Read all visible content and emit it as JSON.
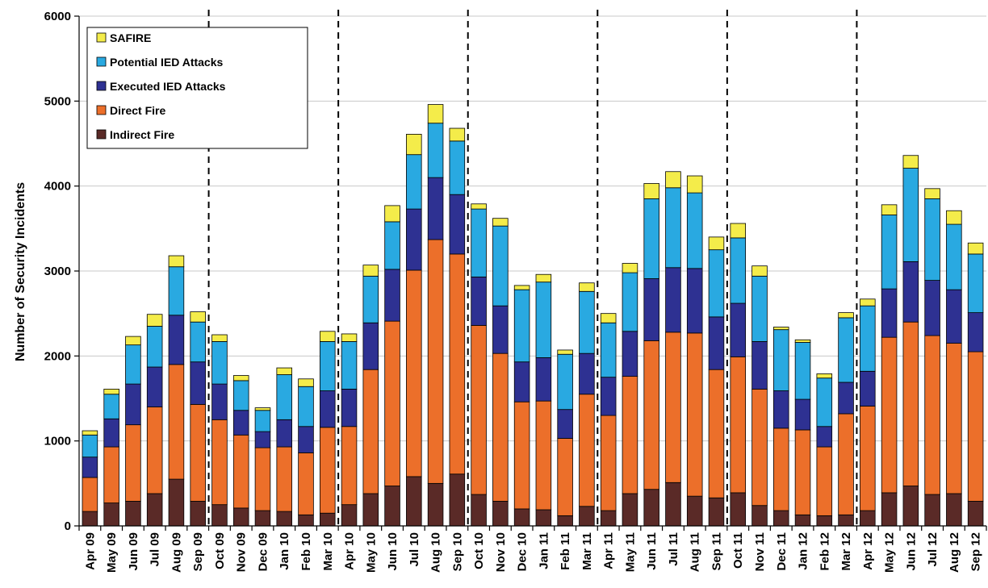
{
  "chart_data": {
    "type": "bar",
    "stacked": true,
    "title": "",
    "xlabel": "",
    "ylabel": "Number of Security Incidents",
    "ylim": [
      0,
      6000
    ],
    "yticks": [
      0,
      1000,
      2000,
      3000,
      4000,
      5000,
      6000
    ],
    "grid": true,
    "legend_position": "top-left",
    "categories": [
      "Apr 09",
      "May 09",
      "Jun 09",
      "Jul 09",
      "Aug 09",
      "Sep 09",
      "Oct 09",
      "Nov 09",
      "Dec 09",
      "Jan 10",
      "Feb 10",
      "Mar 10",
      "Apr 10",
      "May 10",
      "Jun 10",
      "Jul 10",
      "Aug 10",
      "Sep 10",
      "Oct 10",
      "Nov 10",
      "Dec 10",
      "Jan 11",
      "Feb 11",
      "Mar 11",
      "Apr 11",
      "May 11",
      "Jun 11",
      "Jul 11",
      "Aug 11",
      "Sep 11",
      "Oct 11",
      "Nov 11",
      "Dec 11",
      "Jan 12",
      "Feb 12",
      "Mar 12",
      "Apr 12",
      "May 12",
      "Jun 12",
      "Jul 12",
      "Aug 12",
      "Sep 12"
    ],
    "series": [
      {
        "name": "Indirect Fire",
        "color": "#5a2a27",
        "values": [
          170,
          270,
          290,
          380,
          550,
          290,
          250,
          210,
          180,
          170,
          130,
          150,
          250,
          380,
          470,
          580,
          500,
          610,
          370,
          290,
          200,
          190,
          120,
          230,
          180,
          380,
          430,
          510,
          350,
          330,
          390,
          240,
          180,
          130,
          120,
          130,
          180,
          390,
          470,
          370,
          380,
          290
        ]
      },
      {
        "name": "Direct Fire",
        "color": "#ec6f2a",
        "values": [
          400,
          660,
          900,
          1020,
          1350,
          1140,
          1000,
          860,
          740,
          760,
          730,
          1010,
          920,
          1460,
          1940,
          2430,
          2870,
          2590,
          1990,
          1740,
          1260,
          1280,
          910,
          1320,
          1120,
          1380,
          1750,
          1770,
          1920,
          1510,
          1600,
          1370,
          970,
          1000,
          810,
          1190,
          1230,
          1830,
          1930,
          1870,
          1770,
          1760
        ]
      },
      {
        "name": "Executed IED Attacks",
        "color": "#2e3192",
        "values": [
          240,
          330,
          480,
          470,
          580,
          500,
          420,
          290,
          190,
          320,
          310,
          430,
          440,
          550,
          610,
          720,
          730,
          700,
          570,
          560,
          470,
          510,
          340,
          480,
          450,
          530,
          730,
          760,
          760,
          620,
          630,
          560,
          440,
          360,
          240,
          370,
          410,
          570,
          710,
          650,
          630,
          460
        ]
      },
      {
        "name": "Potential IED Attacks",
        "color": "#29a9e1",
        "values": [
          260,
          290,
          460,
          480,
          570,
          470,
          500,
          350,
          250,
          530,
          470,
          580,
          560,
          550,
          560,
          640,
          640,
          630,
          800,
          940,
          850,
          890,
          650,
          730,
          640,
          690,
          940,
          940,
          890,
          790,
          770,
          770,
          720,
          670,
          570,
          760,
          770,
          870,
          1100,
          960,
          770,
          690
        ]
      },
      {
        "name": "SAFIRE",
        "color": "#f4ec4a",
        "values": [
          50,
          60,
          100,
          140,
          130,
          120,
          80,
          60,
          30,
          80,
          90,
          120,
          90,
          130,
          190,
          240,
          220,
          150,
          60,
          90,
          50,
          90,
          50,
          100,
          110,
          110,
          180,
          190,
          200,
          150,
          170,
          120,
          30,
          30,
          50,
          60,
          80,
          120,
          150,
          120,
          160,
          130
        ]
      }
    ],
    "legend_order": [
      "SAFIRE",
      "Potential IED Attacks",
      "Executed IED Attacks",
      "Direct Fire",
      "Indirect Fire"
    ],
    "dashed_dividers_between": [
      "Sep 09|Oct 09",
      "Mar 10|Apr 10",
      "Sep 10|Oct 10",
      "Mar 11|Apr 11",
      "Sep 11|Oct 11",
      "Mar 12|Apr 12"
    ]
  }
}
